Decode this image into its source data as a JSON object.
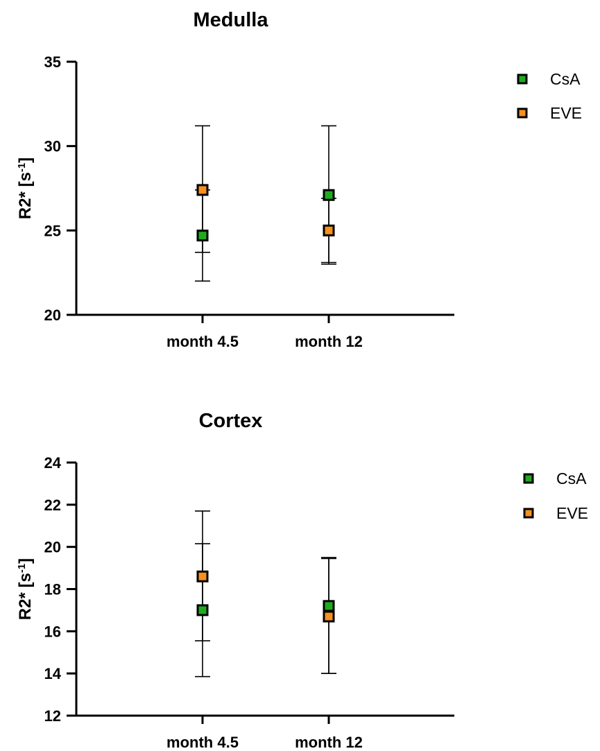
{
  "colors": {
    "CsA": "#1fab1f",
    "EVE": "#f7901e",
    "axis": "#000000"
  },
  "chart_data": [
    {
      "type": "scatter",
      "title": "Medulla",
      "ylabel_main": "R2* [s",
      "ylabel_sup": "-1",
      "ylabel_end": "]",
      "categories": [
        "month 4.5",
        "month 12"
      ],
      "ylim": [
        20,
        35
      ],
      "yticks": [
        20,
        25,
        30,
        35
      ],
      "yticks_labels": [
        "20",
        "25",
        "30",
        "35"
      ],
      "legend": [
        "CsA",
        "EVE"
      ],
      "series": [
        {
          "name": "CsA",
          "values": [
            24.7,
            27.1
          ],
          "err_low": [
            22.0,
            23.0
          ],
          "err_high": [
            27.4,
            31.2
          ]
        },
        {
          "name": "EVE",
          "values": [
            27.4,
            25.0
          ],
          "err_low": [
            23.7,
            23.1
          ],
          "err_high": [
            31.2,
            26.9
          ]
        }
      ]
    },
    {
      "type": "scatter",
      "title": "Cortex",
      "ylabel_main": "R2* [s",
      "ylabel_sup": "-1",
      "ylabel_end": "]",
      "categories": [
        "month 4.5",
        "month 12"
      ],
      "ylim": [
        12,
        24
      ],
      "yticks": [
        12,
        14,
        16,
        18,
        20,
        22,
        24
      ],
      "yticks_labels": [
        "12",
        "14",
        "16",
        "18",
        "20",
        "22",
        "24"
      ],
      "legend": [
        "CsA",
        "EVE"
      ],
      "series": [
        {
          "name": "CsA",
          "values": [
            17.0,
            17.2
          ],
          "err_low": [
            13.85,
            14.0
          ],
          "err_high": [
            20.15,
            19.5
          ]
        },
        {
          "name": "EVE",
          "values": [
            18.6,
            16.7
          ],
          "err_low": [
            15.55,
            14.0
          ],
          "err_high": [
            21.7,
            19.45
          ]
        }
      ]
    }
  ]
}
